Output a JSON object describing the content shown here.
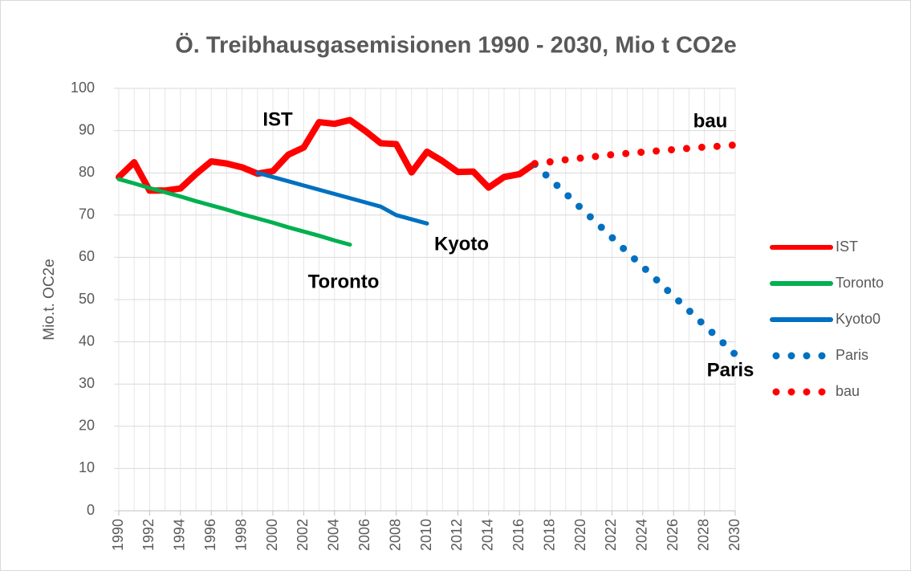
{
  "chart_data": {
    "type": "line",
    "title": "Ö. Treibhausgasemisionen 1990 - 2030, Mio t CO2e",
    "y_label": "Mio.t. OC2e",
    "annotations": [
      "IST",
      "bau",
      "Kyoto",
      "Toronto",
      "Paris"
    ],
    "x": [
      1990,
      1991,
      1992,
      1993,
      1994,
      1995,
      1996,
      1997,
      1998,
      1999,
      2000,
      2001,
      2002,
      2003,
      2004,
      2005,
      2006,
      2007,
      2008,
      2009,
      2010,
      2011,
      2012,
      2013,
      2014,
      2015,
      2016,
      2017,
      2018,
      2019,
      2020,
      2021,
      2022,
      2023,
      2024,
      2025,
      2026,
      2027,
      2028,
      2029,
      2030
    ],
    "xlim": [
      1990,
      2030
    ],
    "xticks": [
      1990,
      1992,
      1994,
      1996,
      1998,
      2000,
      2002,
      2004,
      2006,
      2008,
      2010,
      2012,
      2014,
      2016,
      2018,
      2020,
      2022,
      2024,
      2026,
      2028,
      2030
    ],
    "ylim": [
      0,
      100
    ],
    "yticks": [
      0,
      10,
      20,
      30,
      40,
      50,
      60,
      70,
      80,
      90,
      100
    ],
    "grid": true,
    "legend": "right",
    "series": [
      {
        "name": "IST",
        "color": "#ff0000",
        "style": "solid",
        "values": [
          79,
          82.5,
          75.8,
          75.8,
          76.3,
          79.7,
          82.7,
          82.2,
          81.3,
          79.8,
          80.4,
          84.3,
          86,
          92,
          91.6,
          92.5,
          89.9,
          87,
          86.8,
          80.1,
          85,
          82.8,
          80.2,
          80.3,
          76.5,
          79,
          79.7,
          82.2,
          null,
          null,
          null,
          null,
          null,
          null,
          null,
          null,
          null,
          null,
          null,
          null,
          null
        ]
      },
      {
        "name": "Toronto",
        "color": "#00b050",
        "style": "solid",
        "values": [
          78.5,
          77.5,
          76.4,
          75.4,
          74.4,
          73.3,
          72.3,
          71.3,
          70.2,
          69.2,
          68.2,
          67.1,
          66.1,
          65.1,
          64,
          63,
          null,
          null,
          null,
          null,
          null,
          null,
          null,
          null,
          null,
          null,
          null,
          null,
          null,
          null,
          null,
          null,
          null,
          null,
          null,
          null,
          null,
          null,
          null,
          null,
          null
        ]
      },
      {
        "name": "Kyoto0",
        "color": "#0070c0",
        "style": "solid",
        "values": [
          null,
          null,
          null,
          null,
          null,
          null,
          null,
          null,
          null,
          80,
          79,
          78,
          77,
          76,
          75,
          74,
          73,
          72,
          70,
          69,
          68,
          null,
          null,
          null,
          null,
          null,
          null,
          null,
          null,
          null,
          null,
          null,
          null,
          null,
          null,
          null,
          null,
          null,
          null,
          null,
          null
        ]
      },
      {
        "name": "Paris",
        "color": "#0070c0",
        "style": "dotted",
        "values": [
          null,
          null,
          null,
          null,
          null,
          null,
          null,
          null,
          null,
          null,
          null,
          null,
          null,
          null,
          null,
          null,
          null,
          null,
          null,
          null,
          null,
          null,
          null,
          null,
          null,
          null,
          null,
          82,
          78.5,
          75.1,
          71.6,
          68.2,
          64.7,
          61.2,
          57.8,
          54.3,
          50.8,
          47.4,
          43.9,
          40.5,
          37
        ]
      },
      {
        "name": "bau",
        "color": "#ff0000",
        "style": "dotted",
        "values": [
          null,
          null,
          null,
          null,
          null,
          null,
          null,
          null,
          null,
          null,
          null,
          null,
          null,
          null,
          null,
          null,
          null,
          null,
          null,
          null,
          null,
          null,
          null,
          null,
          null,
          null,
          null,
          82.2,
          82.6,
          83.1,
          83.5,
          83.9,
          84.3,
          84.6,
          84.9,
          85.2,
          85.5,
          85.8,
          86.1,
          86.3,
          86.6
        ]
      }
    ]
  }
}
